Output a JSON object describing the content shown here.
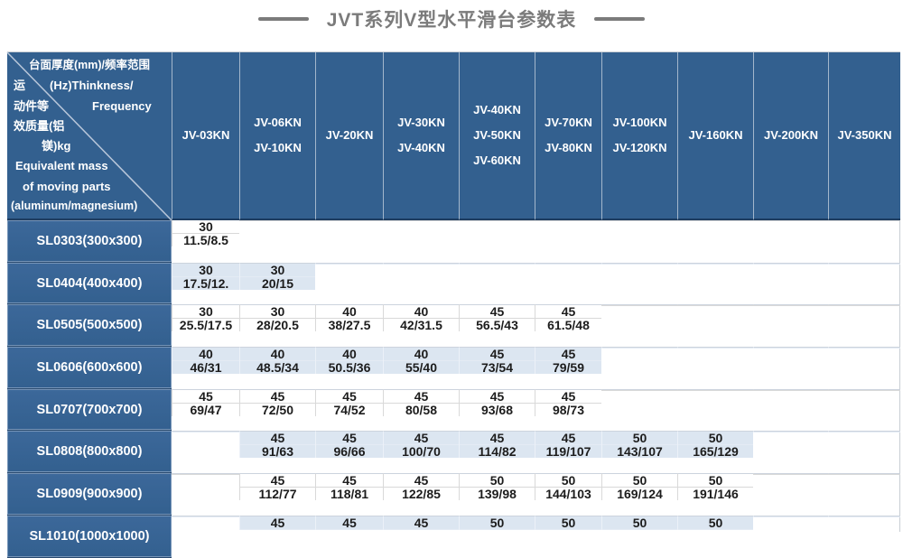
{
  "title": {
    "text": "JVT系列V型水平滑台参数表"
  },
  "colors": {
    "header_blue": "#33608f",
    "row_alternate_blue": "#dce6f1",
    "title_gray": "#7b7b7b",
    "value_text": "#1c1c1c"
  },
  "table": {
    "corner": {
      "lines": [
        {
          "segments": [
            "台面厚度(mm)/频率范围"
          ]
        },
        {
          "segments": [
            "运",
            "(Hz)Thinkness/"
          ]
        },
        {
          "segments": [
            "动件等",
            "Frequency"
          ]
        },
        {
          "segments": [
            "效质量(铝"
          ]
        },
        {
          "segments": [
            "镁)kg"
          ]
        },
        {
          "segments": [
            "Equivalent mass"
          ]
        },
        {
          "segments": [
            "of moving parts"
          ]
        },
        {
          "segments": [
            "(aluminum/magnesium)"
          ]
        }
      ]
    },
    "columns": [
      {
        "lines": [
          "JV-03KN"
        ]
      },
      {
        "lines": [
          "JV-06KN",
          "JV-10KN"
        ]
      },
      {
        "lines": [
          "JV-20KN"
        ]
      },
      {
        "lines": [
          "JV-30KN",
          "JV-40KN"
        ]
      },
      {
        "lines": [
          "JV-40KN",
          "JV-50KN",
          "JV-60KN"
        ]
      },
      {
        "lines": [
          "JV-70KN",
          "JV-80KN"
        ]
      },
      {
        "lines": [
          "JV-100KN",
          "JV-120KN"
        ]
      },
      {
        "lines": [
          "JV-160KN"
        ]
      },
      {
        "lines": [
          "JV-200KN"
        ]
      },
      {
        "lines": [
          "JV-350KN"
        ]
      }
    ],
    "rows": [
      {
        "header": "SL0303(300x300)",
        "cells": [
          [
            "30",
            "11.5/8.5"
          ],
          [
            "",
            ""
          ],
          [
            "",
            ""
          ],
          [
            "",
            ""
          ],
          [
            "",
            ""
          ],
          [
            "",
            ""
          ],
          [
            "",
            ""
          ],
          [
            "",
            ""
          ],
          [
            "",
            ""
          ],
          [
            "",
            ""
          ]
        ]
      },
      {
        "header": "SL0404(400x400)",
        "cells": [
          [
            "30",
            "17.5/12."
          ],
          [
            "30",
            "20/15"
          ],
          [
            "",
            ""
          ],
          [
            "",
            ""
          ],
          [
            "",
            ""
          ],
          [
            "",
            ""
          ],
          [
            "",
            ""
          ],
          [
            "",
            ""
          ],
          [
            "",
            ""
          ],
          [
            "",
            ""
          ]
        ]
      },
      {
        "header": "SL0505(500x500)",
        "cells": [
          [
            "30",
            "25.5/17.5"
          ],
          [
            "30",
            "28/20.5"
          ],
          [
            "40",
            "38/27.5"
          ],
          [
            "40",
            "42/31.5"
          ],
          [
            "45",
            "56.5/43"
          ],
          [
            "45",
            "61.5/48"
          ],
          [
            "",
            ""
          ],
          [
            "",
            ""
          ],
          [
            "",
            ""
          ],
          [
            "",
            ""
          ]
        ]
      },
      {
        "header": "SL0606(600x600)",
        "cells": [
          [
            "40",
            "46/31"
          ],
          [
            "40",
            "48.5/34"
          ],
          [
            "40",
            "50.5/36"
          ],
          [
            "40",
            "55/40"
          ],
          [
            "45",
            "73/54"
          ],
          [
            "45",
            "79/59"
          ],
          [
            "",
            ""
          ],
          [
            "",
            ""
          ],
          [
            "",
            ""
          ],
          [
            "",
            ""
          ]
        ]
      },
      {
        "header": "SL0707(700x700)",
        "cells": [
          [
            "45",
            "69/47"
          ],
          [
            "45",
            "72/50"
          ],
          [
            "45",
            "74/52"
          ],
          [
            "45",
            "80/58"
          ],
          [
            "45",
            "93/68"
          ],
          [
            "45",
            "98/73"
          ],
          [
            "",
            ""
          ],
          [
            "",
            ""
          ],
          [
            "",
            ""
          ],
          [
            "",
            ""
          ]
        ]
      },
      {
        "header": "SL0808(800x800)",
        "cells": [
          [
            "",
            ""
          ],
          [
            "45",
            "91/63"
          ],
          [
            "45",
            "96/66"
          ],
          [
            "45",
            "100/70"
          ],
          [
            "45",
            "114/82"
          ],
          [
            "45",
            "119/107"
          ],
          [
            "50",
            "143/107"
          ],
          [
            "50",
            "165/129"
          ],
          [
            "",
            ""
          ],
          [
            "",
            ""
          ]
        ]
      },
      {
        "header": "SL0909(900x900)",
        "cells": [
          [
            "",
            ""
          ],
          [
            "45",
            "112/77"
          ],
          [
            "45",
            "118/81"
          ],
          [
            "45",
            "122/85"
          ],
          [
            "50",
            "139/98"
          ],
          [
            "50",
            "144/103"
          ],
          [
            "50",
            "169/124"
          ],
          [
            "50",
            "191/146"
          ],
          [
            "",
            ""
          ],
          [
            "",
            ""
          ]
        ]
      },
      {
        "header": "SL1010(1000x1000)",
        "cells": [
          [
            "",
            ""
          ],
          [
            "45",
            ""
          ],
          [
            "45",
            ""
          ],
          [
            "45",
            ""
          ],
          [
            "50",
            ""
          ],
          [
            "50",
            ""
          ],
          [
            "50",
            ""
          ],
          [
            "50",
            ""
          ],
          [
            "",
            ""
          ],
          [
            "",
            ""
          ]
        ]
      }
    ]
  }
}
